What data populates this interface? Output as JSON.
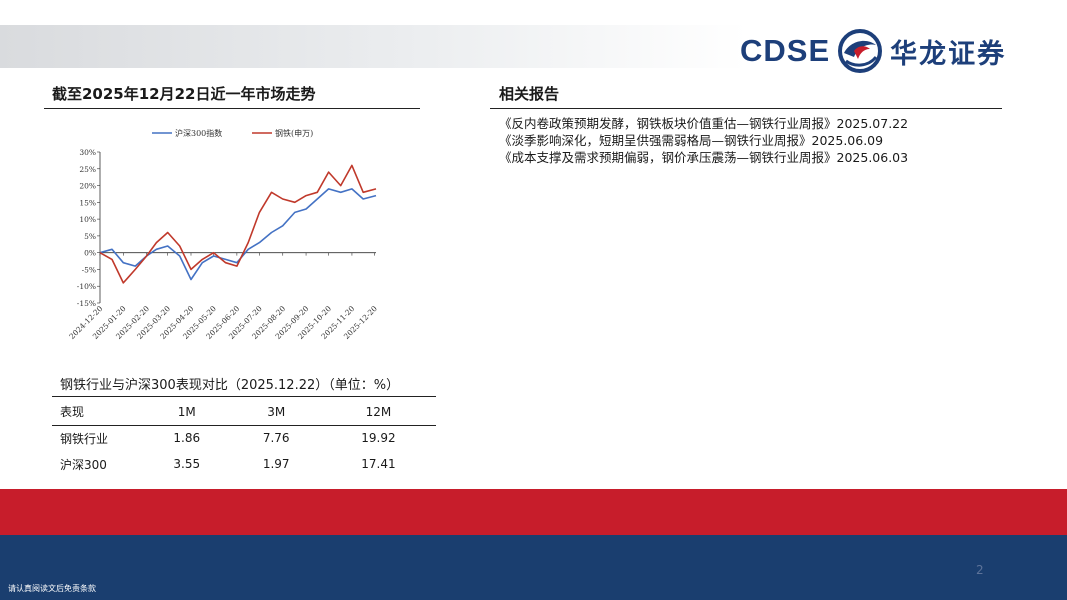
{
  "header": {
    "logo_en": "CDSE",
    "logo_cn": "华龙证券",
    "colors": {
      "brand_blue": "#1d3f7a",
      "brand_red": "#c71d2b"
    }
  },
  "market_section": {
    "title": "截至2025年12月22日近一年市场走势"
  },
  "reports_section": {
    "title": "相关报告",
    "items": [
      "《反内卷政策预期发酵，钢铁板块价值重估—钢铁行业周报》2025.07.22",
      "《淡季影响深化，短期呈供强需弱格局—钢铁行业周报》2025.06.09",
      "《成本支撑及需求预期偏弱，钢价承压震荡—钢铁行业周报》2025.06.03"
    ]
  },
  "chart_data": {
    "type": "line",
    "legend": [
      "沪深300指数",
      "钢铁(申万)"
    ],
    "legend_placement": "top",
    "y_ticks": [
      "30%",
      "25%",
      "20%",
      "15%",
      "10%",
      "5%",
      "0%",
      "-5%",
      "-10%",
      "-15%"
    ],
    "ylim": [
      -15,
      30
    ],
    "x_ticks": [
      "2024-12-20",
      "2025-01-20",
      "2025-02-20",
      "2025-03-20",
      "2025-04-20",
      "2025-05-20",
      "2025-06-20",
      "2025-07-20",
      "2025-08-20",
      "2025-09-20",
      "2025-10-20",
      "2025-11-20",
      "2025-12-20"
    ],
    "x": [
      "2024-12-20",
      "2025-01-05",
      "2025-01-20",
      "2025-02-05",
      "2025-02-20",
      "2025-03-05",
      "2025-03-20",
      "2025-04-05",
      "2025-04-20",
      "2025-05-05",
      "2025-05-20",
      "2025-06-05",
      "2025-06-20",
      "2025-07-05",
      "2025-07-20",
      "2025-08-05",
      "2025-08-20",
      "2025-09-05",
      "2025-09-20",
      "2025-10-05",
      "2025-10-20",
      "2025-11-05",
      "2025-11-20",
      "2025-12-05",
      "2025-12-22"
    ],
    "series": [
      {
        "name": "沪深300指数",
        "color": "#4472c4",
        "values": [
          0,
          1,
          -3,
          -4,
          -1,
          1,
          2,
          -1,
          -8,
          -3,
          -1,
          -2,
          -3,
          1,
          3,
          6,
          8,
          12,
          13,
          16,
          19,
          18,
          19,
          16,
          17
        ]
      },
      {
        "name": "钢铁(申万)",
        "color": "#c0392b",
        "values": [
          0,
          -2,
          -9,
          -5,
          -1,
          3,
          6,
          2,
          -5,
          -2,
          0,
          -3,
          -4,
          3,
          12,
          18,
          16,
          15,
          17,
          18,
          24,
          20,
          26,
          18,
          19
        ]
      }
    ]
  },
  "performance": {
    "title": "钢铁行业与沪深300表现对比（2025.12.22）（单位：%）",
    "columns": [
      "表现",
      "1M",
      "3M",
      "12M"
    ],
    "rows": [
      [
        "钢铁行业",
        "1.86",
        "7.76",
        "19.92"
      ],
      [
        "沪深300",
        "3.55",
        "1.97",
        "17.41"
      ]
    ]
  },
  "footer": {
    "page_number": "2",
    "disclaimer": "请认真阅读文后免责条款"
  }
}
